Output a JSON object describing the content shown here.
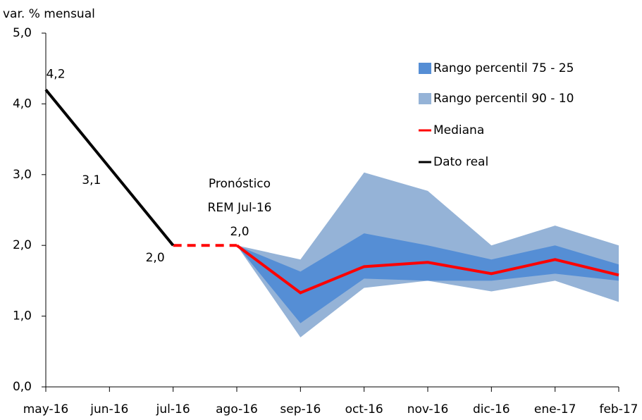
{
  "chart_data": {
    "type": "line",
    "y_label": "var. % mensual",
    "categories": [
      "may-16",
      "jun-16",
      "jul-16",
      "ago-16",
      "sep-16",
      "oct-16",
      "nov-16",
      "dic-16",
      "ene-17",
      "feb-17"
    ],
    "series": [
      {
        "name": "Rango percentil 75 - 25",
        "kind": "band",
        "color": "#558ed5",
        "lower": [
          null,
          null,
          null,
          2.0,
          0.9,
          1.53,
          1.5,
          1.5,
          1.6,
          1.5
        ],
        "upper": [
          null,
          null,
          null,
          2.0,
          1.63,
          2.17,
          2.0,
          1.8,
          2.0,
          1.73
        ]
      },
      {
        "name": "Rango percentil 90 - 10",
        "kind": "band",
        "color": "#95b3d7",
        "lower": [
          null,
          null,
          null,
          2.0,
          0.7,
          1.4,
          1.5,
          1.35,
          1.5,
          1.2
        ],
        "upper": [
          null,
          null,
          null,
          2.0,
          1.8,
          3.03,
          2.77,
          2.0,
          2.28,
          2.0
        ]
      },
      {
        "name": "Mediana",
        "kind": "line",
        "color": "#ff0000",
        "dash_first_segment": true,
        "values": [
          null,
          null,
          2.0,
          2.0,
          1.33,
          1.7,
          1.76,
          1.6,
          1.8,
          1.58
        ]
      },
      {
        "name": "Dato real",
        "kind": "line",
        "color": "#000000",
        "values": [
          4.2,
          3.1,
          2.0,
          null,
          null,
          null,
          null,
          null,
          null,
          null
        ],
        "value_labels": [
          "4,2",
          "3,1",
          "2,0",
          null,
          null,
          null,
          null,
          null,
          null,
          null
        ]
      }
    ],
    "annotation": [
      "Pronóstico",
      "REM Jul-16",
      "2,0"
    ],
    "annotation_color": "#ff0000",
    "ylim": [
      0,
      5
    ],
    "yticks": [
      {
        "value": 0,
        "label": "0,0"
      },
      {
        "value": 1,
        "label": "1,0"
      },
      {
        "value": 2,
        "label": "2,0"
      },
      {
        "value": 3,
        "label": "3,0"
      },
      {
        "value": 4,
        "label": "4,0"
      },
      {
        "value": 5,
        "label": "5,0"
      }
    ]
  }
}
